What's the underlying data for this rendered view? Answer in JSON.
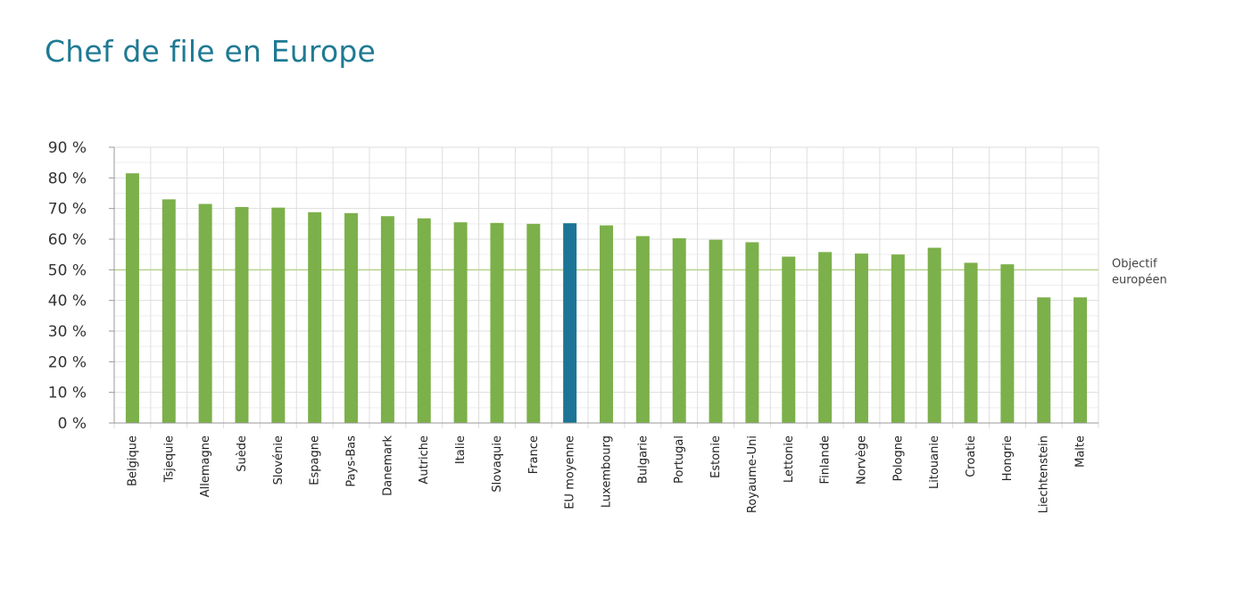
{
  "title": "Chef de file en Europe",
  "chart_data": {
    "type": "bar",
    "title": "Chef de file en Europe",
    "xlabel": "",
    "ylabel": "",
    "ylim": [
      0,
      90
    ],
    "yticks": [
      0,
      10,
      20,
      30,
      40,
      50,
      60,
      70,
      80,
      90
    ],
    "ytick_labels": [
      "0 %",
      "10 %",
      "20 %",
      "30 %",
      "40 %",
      "50 %",
      "60 %",
      "70 %",
      "80 %",
      "90 %"
    ],
    "grid": true,
    "categories": [
      "Belgique",
      "Tsjequie",
      "Allemagne",
      "Suède",
      "Slovénie",
      "Espagne",
      "Pays-Bas",
      "Danemark",
      "Autriche",
      "Italie",
      "Slovaquie",
      "France",
      "EU moyenne",
      "Luxembourg",
      "Bulgarie",
      "Portugal",
      "Estonie",
      "Royaume-Uni",
      "Lettonie",
      "Finlande",
      "Norvège",
      "Pologne",
      "Litouanie",
      "Croatie",
      "Hongrie",
      "Liechtenstein",
      "Malte"
    ],
    "values": [
      81.5,
      73,
      71.5,
      70.5,
      70.3,
      68.8,
      68.5,
      67.5,
      66.8,
      65.5,
      65.3,
      65,
      65.2,
      64.5,
      61,
      60.3,
      59.8,
      59,
      54.3,
      55.8,
      55.3,
      55,
      57.2,
      52.3,
      51.8,
      41,
      41
    ],
    "highlight_category": "EU moyenne",
    "target": {
      "value": 50,
      "label_line1": "Objectif",
      "label_line2": "européen"
    },
    "colors": {
      "bar": "#7cb04a",
      "highlight": "#1c7596",
      "target_line": "#b7d38e",
      "grid": "#dedede",
      "title": "#1f7a93"
    }
  }
}
